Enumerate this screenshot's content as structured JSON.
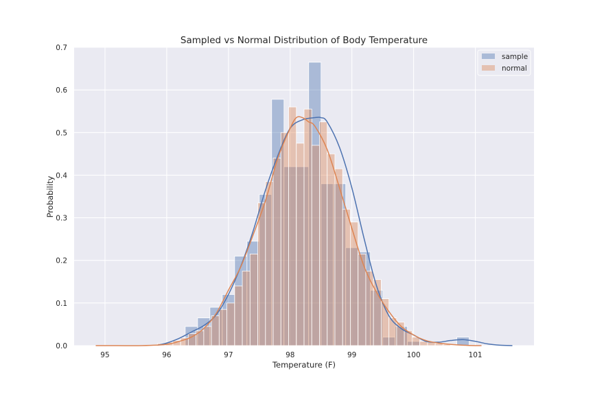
{
  "chart_data": {
    "type": "bar",
    "title": "Sampled vs Normal Distribution of Body Temperature",
    "xlabel": "Temperature (F)",
    "ylabel": "Probability",
    "xlim": [
      94.5,
      101.95
    ],
    "ylim": [
      0,
      0.7
    ],
    "xticks": [
      95,
      96,
      97,
      98,
      99,
      100,
      101
    ],
    "yticks": [
      0.0,
      0.1,
      0.2,
      0.3,
      0.4,
      0.5,
      0.6,
      0.7
    ],
    "xtick_labels": [
      "95",
      "96",
      "97",
      "98",
      "99",
      "100",
      "101"
    ],
    "ytick_labels": [
      "0.0",
      "0.1",
      "0.2",
      "0.3",
      "0.4",
      "0.5",
      "0.6",
      "0.7"
    ],
    "grid": true,
    "legend_position": "top-right",
    "background": "#eaeaf2",
    "series": [
      {
        "name": "sample",
        "kind": "histogram",
        "color": "#4c72b0",
        "bin_edges": [
          96.3,
          96.5,
          96.7,
          96.9,
          97.1,
          97.3,
          97.5,
          97.7,
          97.9,
          98.1,
          98.3,
          98.5,
          98.7,
          98.9,
          99.1,
          99.3,
          99.5,
          99.7,
          99.9,
          100.1,
          100.3,
          100.5,
          100.7,
          100.9
        ],
        "values": [
          0.045,
          0.065,
          0.09,
          0.12,
          0.21,
          0.245,
          0.355,
          0.578,
          0.42,
          0.42,
          0.665,
          0.38,
          0.38,
          0.23,
          0.22,
          0.13,
          0.02,
          0.045,
          0.01,
          0.0,
          0.0,
          0.0,
          0.02
        ]
      },
      {
        "name": "normal",
        "kind": "histogram",
        "color": "#dd8452",
        "bin_edges": [
          95.85,
          95.975,
          96.1,
          96.225,
          96.35,
          96.475,
          96.6,
          96.725,
          96.85,
          96.975,
          97.1,
          97.225,
          97.35,
          97.475,
          97.6,
          97.725,
          97.85,
          97.975,
          98.1,
          98.225,
          98.35,
          98.475,
          98.6,
          98.725,
          98.85,
          98.975,
          99.1,
          99.225,
          99.35,
          99.475,
          99.6,
          99.725,
          99.85,
          99.975,
          100.1,
          100.225,
          100.35,
          100.475,
          100.6
        ],
        "values": [
          0.005,
          0.008,
          0.012,
          0.018,
          0.028,
          0.035,
          0.045,
          0.07,
          0.085,
          0.1,
          0.14,
          0.175,
          0.215,
          0.335,
          0.385,
          0.44,
          0.5,
          0.56,
          0.475,
          0.555,
          0.47,
          0.525,
          0.45,
          0.415,
          0.32,
          0.29,
          0.215,
          0.175,
          0.155,
          0.11,
          0.065,
          0.055,
          0.035,
          0.02,
          0.01,
          0.008,
          0.005,
          0.003
        ]
      },
      {
        "name": "sample",
        "kind": "kde",
        "color": "#4c72b0",
        "x": [
          95.85,
          96.0,
          96.2,
          96.4,
          96.6,
          96.8,
          97.0,
          97.2,
          97.4,
          97.6,
          97.8,
          98.0,
          98.2,
          98.4,
          98.5,
          98.6,
          98.8,
          99.0,
          99.2,
          99.4,
          99.6,
          99.8,
          100.0,
          100.2,
          100.4,
          100.6,
          100.8,
          101.0,
          101.2,
          101.4,
          101.6
        ],
        "y": [
          0.001,
          0.006,
          0.017,
          0.032,
          0.047,
          0.072,
          0.12,
          0.186,
          0.269,
          0.365,
          0.446,
          0.51,
          0.53,
          0.535,
          0.535,
          0.525,
          0.465,
          0.37,
          0.25,
          0.14,
          0.07,
          0.04,
          0.025,
          0.01,
          0.008,
          0.012,
          0.014,
          0.01,
          0.004,
          0.001,
          0.0
        ]
      },
      {
        "name": "normal",
        "kind": "kde",
        "color": "#dd8452",
        "x": [
          94.85,
          95.2,
          95.6,
          96.0,
          96.2,
          96.4,
          96.6,
          96.8,
          97.0,
          97.2,
          97.4,
          97.6,
          97.8,
          98.0,
          98.1,
          98.2,
          98.3,
          98.4,
          98.6,
          98.8,
          99.0,
          99.2,
          99.4,
          99.6,
          99.8,
          100.0,
          100.2,
          100.4,
          100.6,
          100.8,
          101.0,
          101.1
        ],
        "y": [
          0.0,
          0.0,
          0.0,
          0.003,
          0.01,
          0.02,
          0.04,
          0.075,
          0.13,
          0.185,
          0.26,
          0.34,
          0.44,
          0.51,
          0.535,
          0.535,
          0.525,
          0.515,
          0.46,
          0.37,
          0.275,
          0.185,
          0.125,
          0.08,
          0.045,
          0.025,
          0.012,
          0.006,
          0.003,
          0.001,
          0.0,
          0.0
        ]
      }
    ]
  }
}
